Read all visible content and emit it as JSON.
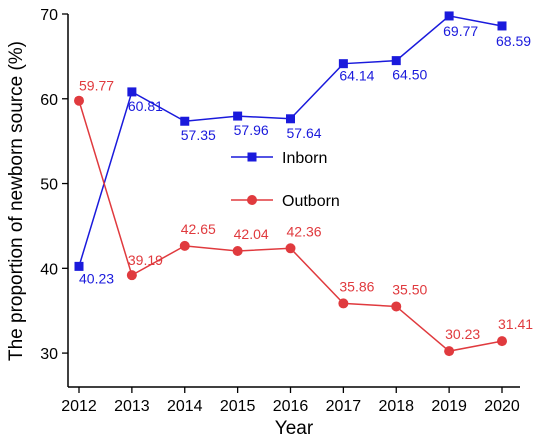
{
  "chart_data": {
    "type": "line",
    "title": "",
    "xlabel": "Year",
    "ylabel": "The proportion of newborn source (%)",
    "x": [
      "2012",
      "2013",
      "2014",
      "2015",
      "2016",
      "2017",
      "2018",
      "2019",
      "2020"
    ],
    "ylim": [
      26,
      70
    ],
    "yticks": [
      "30",
      "40",
      "50",
      "60",
      "70"
    ],
    "grid": false,
    "legend_position": "center",
    "series": [
      {
        "name": "Inborn",
        "color": "#1a1adc",
        "marker": "square",
        "values": [
          40.23,
          60.81,
          57.35,
          57.96,
          57.64,
          64.14,
          64.5,
          69.77,
          68.59
        ],
        "labels": [
          "40.23",
          "60.81",
          "57.35",
          "57.96",
          "57.64",
          "64.14",
          "64.50",
          "69.77",
          "68.59"
        ]
      },
      {
        "name": "Outborn",
        "color": "#e03a3e",
        "marker": "circle",
        "values": [
          59.77,
          39.19,
          42.65,
          42.04,
          42.36,
          35.86,
          35.5,
          30.23,
          31.41
        ],
        "labels": [
          "59.77",
          "39.19",
          "42.65",
          "42.04",
          "42.36",
          "35.86",
          "35.50",
          "30.23",
          "31.41"
        ]
      }
    ]
  }
}
